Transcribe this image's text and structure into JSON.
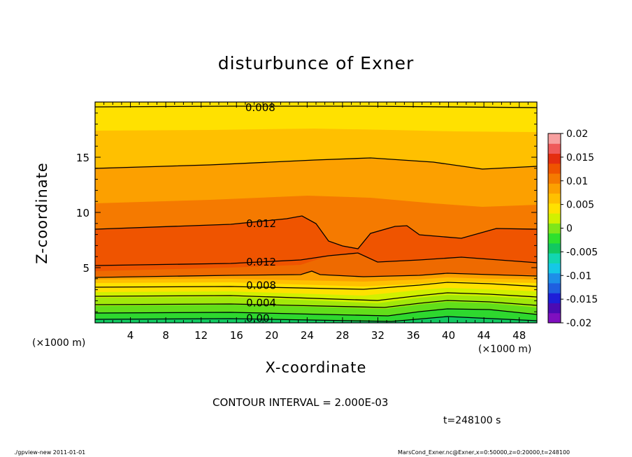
{
  "chart_data": {
    "type": "contour",
    "title": "disturbunce of Exner",
    "xlabel": "X-coordinate",
    "ylabel": "Z-coordinate",
    "x_unit": "(×1000 m)",
    "x_ticks": [
      4,
      8,
      12,
      16,
      20,
      24,
      28,
      32,
      36,
      40,
      44,
      48
    ],
    "xlim": [
      0,
      50
    ],
    "y_ticks": [
      5,
      10,
      15
    ],
    "ylim": [
      0,
      20
    ],
    "contour_labels": [
      {
        "text": "0.008",
        "x": 17.0,
        "z": 19.5
      },
      {
        "text": "0.012",
        "x": 17.1,
        "z": 9.0
      },
      {
        "text": "0.012",
        "x": 17.1,
        "z": 5.5
      },
      {
        "text": "0.008",
        "x": 17.1,
        "z": 3.4
      },
      {
        "text": "0.004",
        "x": 17.1,
        "z": 1.8
      },
      {
        "text": "0.00",
        "x": 17.1,
        "z": 0.4
      }
    ],
    "colorbar": {
      "labels": [
        "0.02",
        "0.015",
        "0.01",
        "0.005",
        "0",
        "-0.005",
        "-0.01",
        "-0.015",
        "-0.02"
      ],
      "colors": [
        "#7f0fbf",
        "#4b0bb3",
        "#1e1ed8",
        "#1f5fe0",
        "#1d8fe8",
        "#15c8e6",
        "#12d6b0",
        "#12c860",
        "#2ee02e",
        "#7ee61a",
        "#d2f000",
        "#ffe100",
        "#ffc000",
        "#fca000",
        "#f57a00",
        "#ef5400",
        "#e42e10",
        "#ef5a5a",
        "#f7a0a0"
      ]
    },
    "contour_interval": "CONTOUR INTERVAL = 2.000E-03",
    "time": "t=248100 s"
  },
  "footer": {
    "left": "./gpview-new   2011-01-01",
    "right": "MarsCond_Exner.nc@Exner,x=0:50000,z=0:20000,t=248100"
  }
}
